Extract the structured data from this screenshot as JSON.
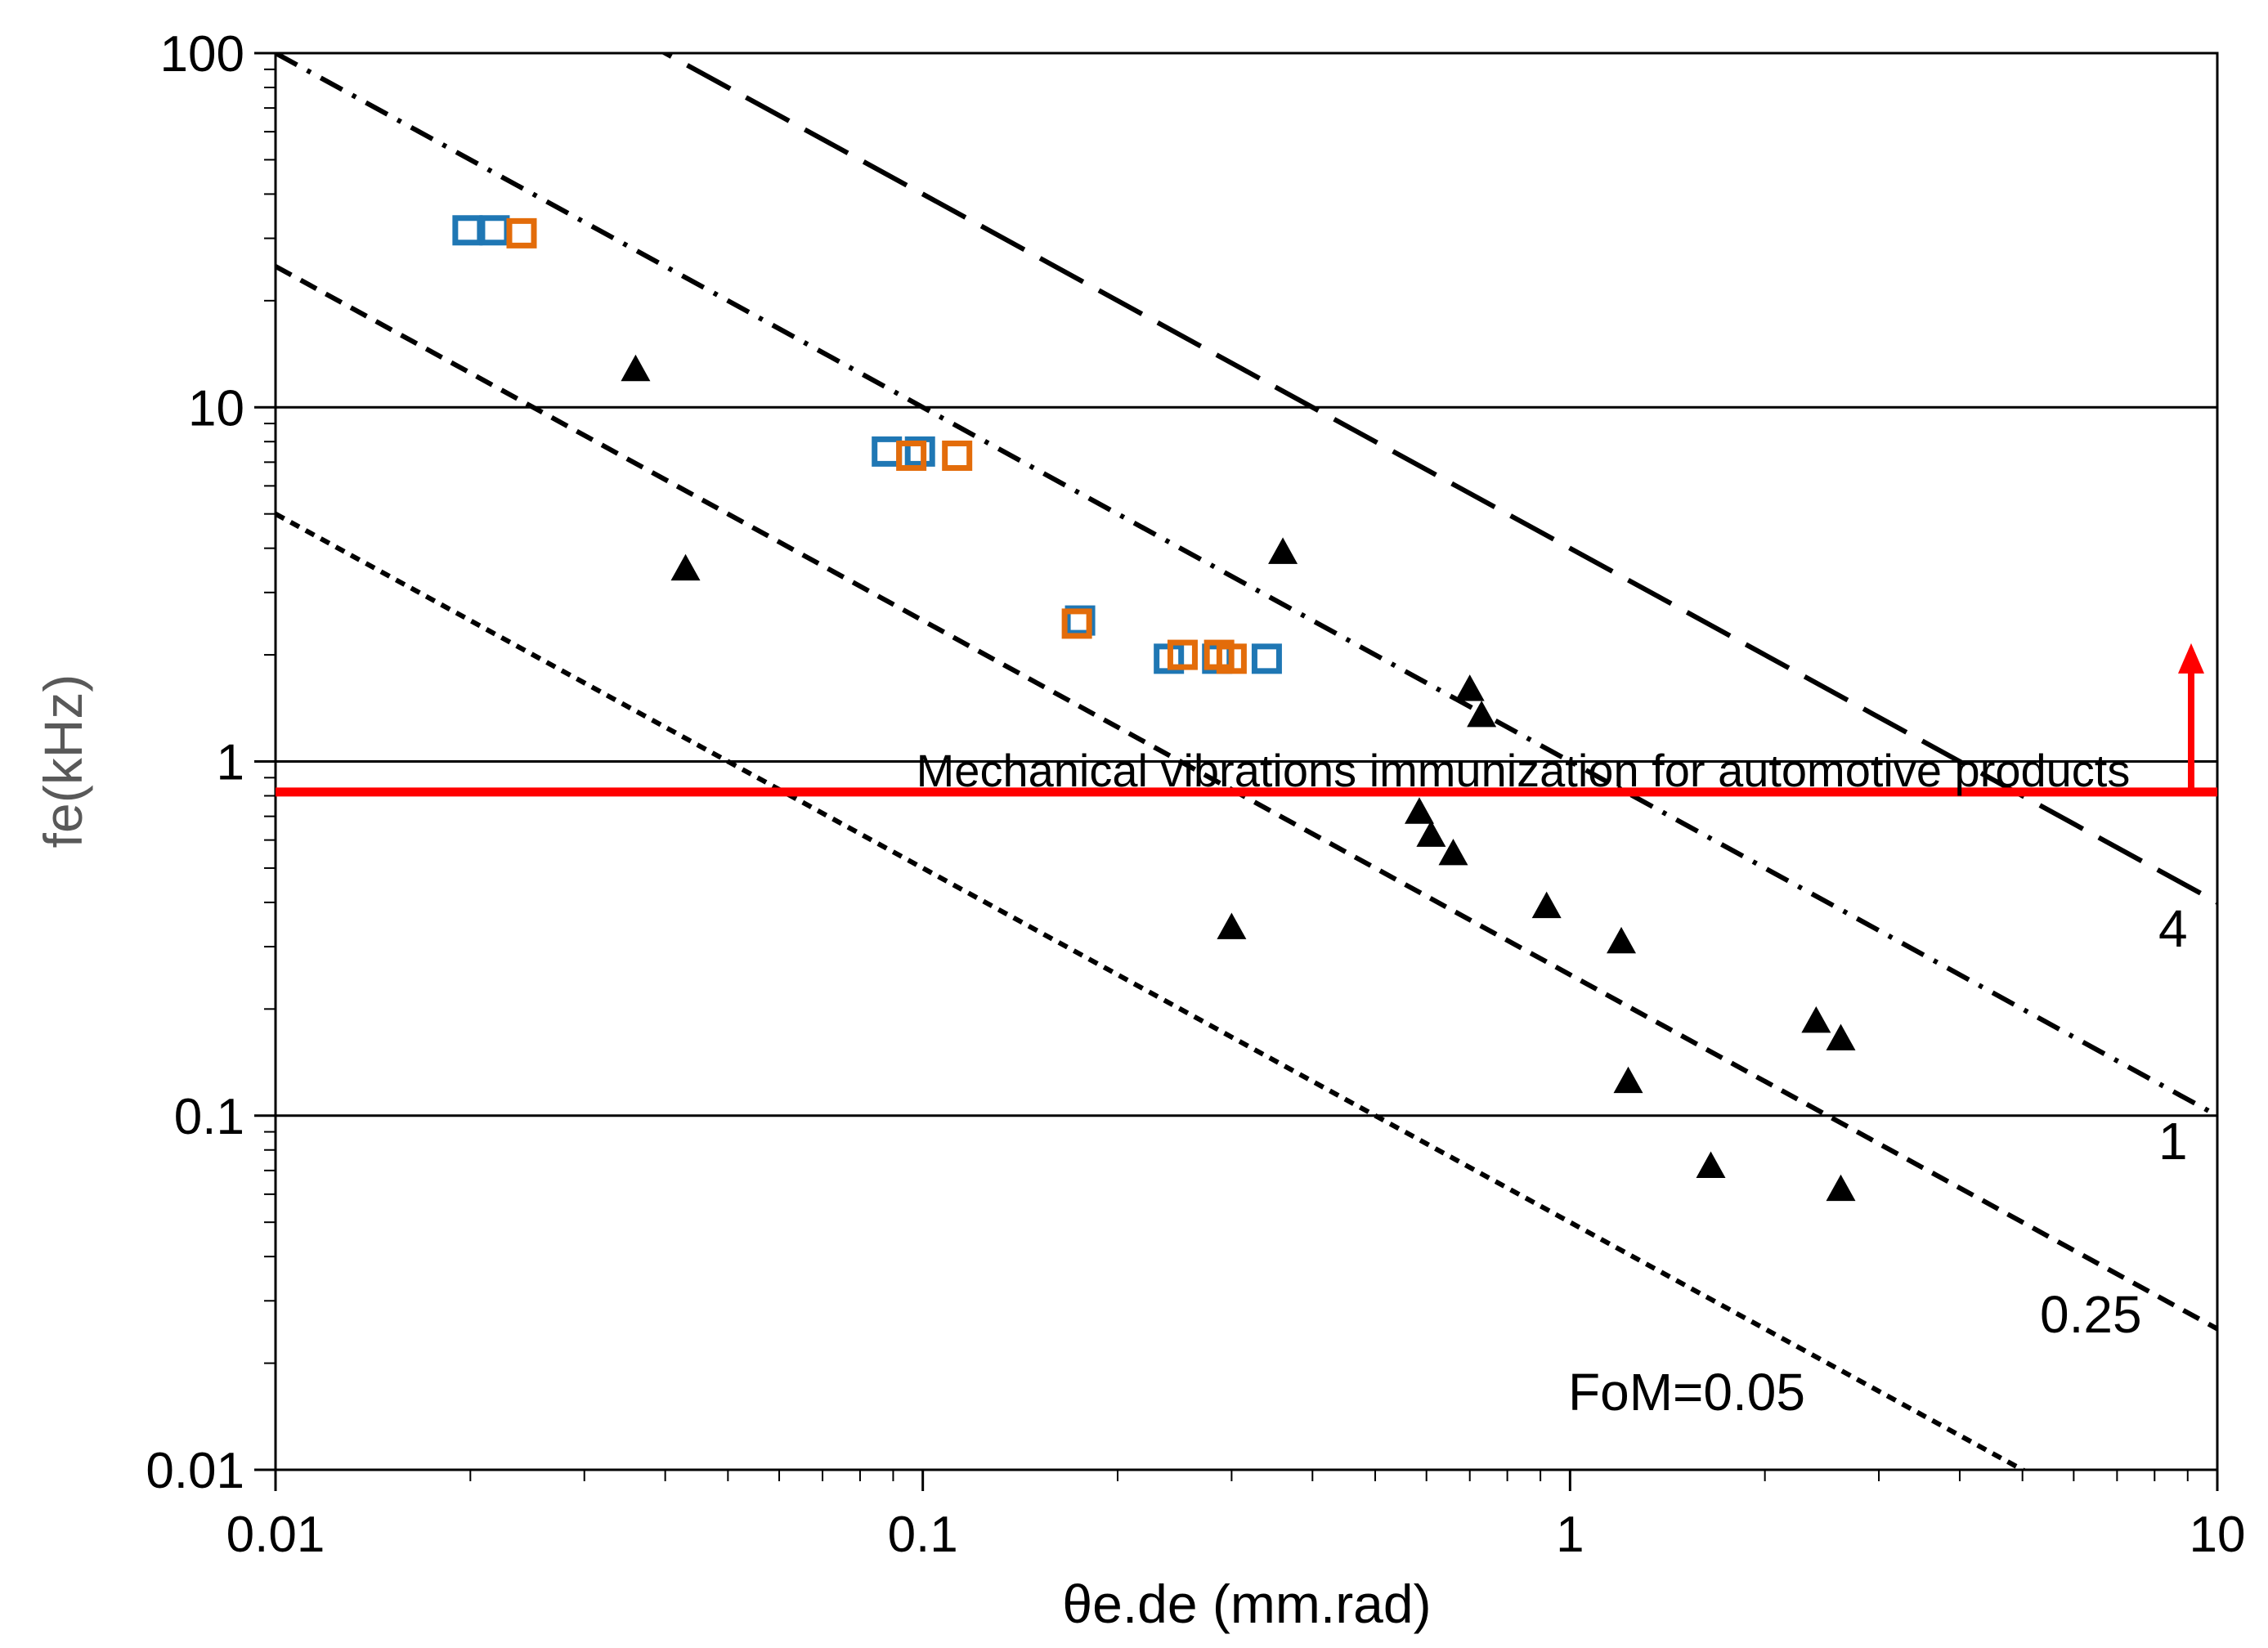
{
  "chart_data": {
    "type": "scatter",
    "xscale": "log",
    "yscale": "log",
    "xlabel": "θe.de (mm.rad)",
    "ylabel": "fe(kHz)",
    "xlim": [
      0.01,
      10
    ],
    "ylim": [
      0.01,
      100
    ],
    "xticks": [
      {
        "value": 0.01,
        "label": "0.01"
      },
      {
        "value": 0.1,
        "label": "0.1"
      },
      {
        "value": 1,
        "label": "1"
      },
      {
        "value": 10,
        "label": "10"
      }
    ],
    "yticks": [
      {
        "value": 0.01,
        "label": "0.01"
      },
      {
        "value": 0.1,
        "label": "0.1"
      },
      {
        "value": 1,
        "label": "1"
      },
      {
        "value": 10,
        "label": "10"
      },
      {
        "value": 100,
        "label": "100"
      }
    ],
    "gridlines_y": [
      0.1,
      1,
      10
    ],
    "fom_lines": [
      {
        "fom": 4,
        "label": "4",
        "dash": "long-dash"
      },
      {
        "fom": 1,
        "label": "1",
        "dash": "dash-dot"
      },
      {
        "fom": 0.25,
        "label": "0.25",
        "dash": "dash"
      },
      {
        "fom": 0.05,
        "label": "FoM=0.05",
        "dash": "short-dash"
      }
    ],
    "threshold": {
      "y": 0.82,
      "label": "Mechanical vibrations immunization for automotive products",
      "color": "#ff0000"
    },
    "series": [
      {
        "name": "blue squares",
        "marker": "square-open",
        "color": "#1f77b4",
        "points": [
          {
            "x": 0.0198,
            "y": 31.6
          },
          {
            "x": 0.0218,
            "y": 31.6
          },
          {
            "x": 0.088,
            "y": 7.5
          },
          {
            "x": 0.099,
            "y": 7.5
          },
          {
            "x": 0.175,
            "y": 2.5
          },
          {
            "x": 0.24,
            "y": 1.95
          },
          {
            "x": 0.285,
            "y": 1.95
          },
          {
            "x": 0.34,
            "y": 1.95
          }
        ]
      },
      {
        "name": "orange squares",
        "marker": "square-open",
        "color": "#e36c0a",
        "points": [
          {
            "x": 0.024,
            "y": 31.0
          },
          {
            "x": 0.096,
            "y": 7.3
          },
          {
            "x": 0.113,
            "y": 7.3
          },
          {
            "x": 0.173,
            "y": 2.45
          },
          {
            "x": 0.252,
            "y": 2.0
          },
          {
            "x": 0.287,
            "y": 2.0
          },
          {
            "x": 0.3,
            "y": 1.95
          }
        ]
      },
      {
        "name": "black triangles",
        "marker": "triangle-filled",
        "color": "#000000",
        "points": [
          {
            "x": 0.036,
            "y": 12.8
          },
          {
            "x": 0.043,
            "y": 3.5
          },
          {
            "x": 0.3,
            "y": 0.34
          },
          {
            "x": 0.36,
            "y": 3.9
          },
          {
            "x": 0.585,
            "y": 0.72
          },
          {
            "x": 0.61,
            "y": 0.62
          },
          {
            "x": 0.66,
            "y": 0.55
          },
          {
            "x": 0.7,
            "y": 1.6
          },
          {
            "x": 0.73,
            "y": 1.35
          },
          {
            "x": 0.92,
            "y": 0.39
          },
          {
            "x": 1.2,
            "y": 0.31
          },
          {
            "x": 1.23,
            "y": 0.125
          },
          {
            "x": 1.65,
            "y": 0.072
          },
          {
            "x": 2.4,
            "y": 0.185
          },
          {
            "x": 2.62,
            "y": 0.165
          },
          {
            "x": 2.62,
            "y": 0.062
          }
        ]
      }
    ]
  }
}
